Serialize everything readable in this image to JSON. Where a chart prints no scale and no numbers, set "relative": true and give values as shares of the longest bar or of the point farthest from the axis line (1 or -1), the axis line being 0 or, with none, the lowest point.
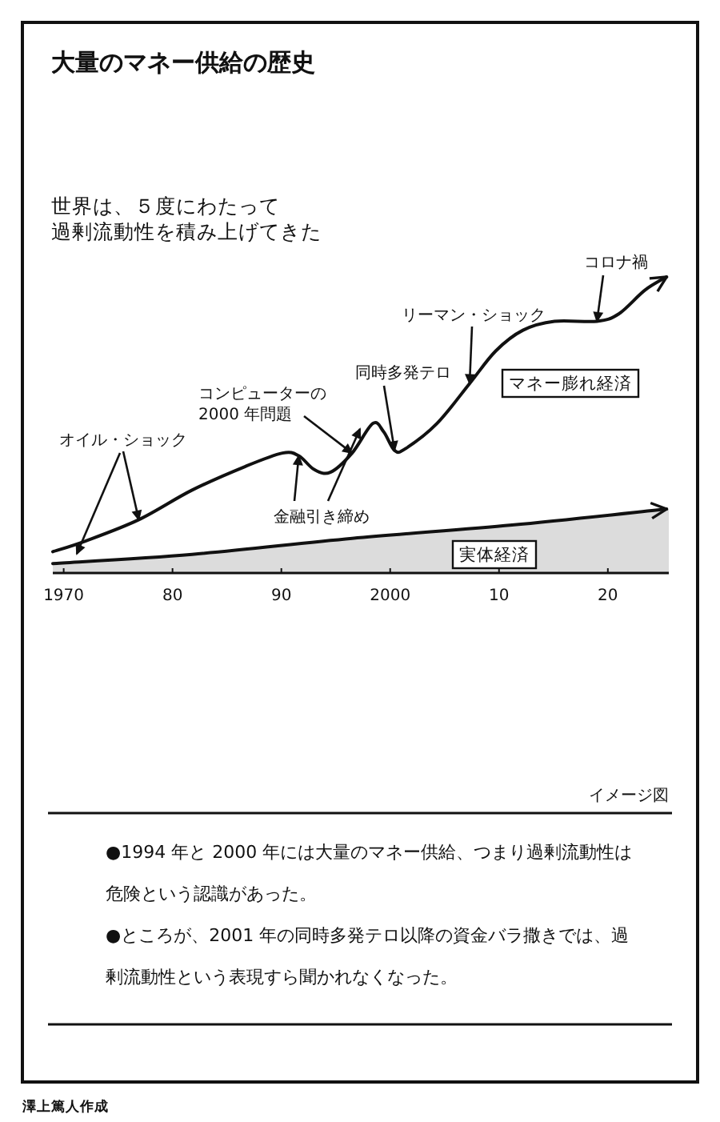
{
  "chart_data": {
    "type": "line",
    "title": "大量のマネー供給の歴史",
    "subtitle": "世界は、５度にわたって過剰流動性を積み上げてきた",
    "relative": true,
    "x": [
      1969,
      1972,
      1976.9,
      1981.8,
      1986.7,
      1990.1,
      1991.6,
      1993,
      1994.5,
      1996.5,
      1998.4,
      1999.4,
      2000.4,
      2001.4,
      2004.3,
      2007.3,
      2009.7,
      2012.2,
      2015.1,
      2019,
      2021,
      2023.4,
      2025.4
    ],
    "xlim": [
      1969,
      2025.6
    ],
    "xticks": [
      1970,
      {
        "value": 1980,
        "label": "80"
      },
      {
        "value": 1990,
        "label": "90"
      },
      2000,
      {
        "value": 2010,
        "label": "10"
      },
      {
        "value": 2020,
        "label": "20"
      }
    ],
    "series": [
      {
        "name": "マネー膨れ経済",
        "color": "#111111",
        "values": [
          0.072,
          0.108,
          0.18,
          0.28,
          0.36,
          0.405,
          0.396,
          0.35,
          0.34,
          0.405,
          0.505,
          0.477,
          0.414,
          0.42,
          0.505,
          0.64,
          0.75,
          0.82,
          0.85,
          0.85,
          0.875,
          0.955,
          1.0
        ]
      },
      {
        "name": "実体経済",
        "type": "area",
        "color": "#111111",
        "x": [
          1969,
          1981.8,
          1996.5,
          2011.2,
          2025.4
        ],
        "values": [
          0.032,
          0.063,
          0.117,
          0.162,
          0.216
        ]
      }
    ],
    "annotations": [
      {
        "text": "オイル・ショック",
        "x": 1976.9,
        "y": 0.18
      },
      {
        "text": "コンピューターの2000 年問題",
        "x": 1996.5,
        "y": 0.405
      },
      {
        "text": "同時多発テロ",
        "x": 2000.4,
        "y": 0.414
      },
      {
        "text": "金融引き締め",
        "x": 1991.6,
        "y": 0.396
      },
      {
        "text": "リーマン・ショック",
        "x": 2007.3,
        "y": 0.64
      },
      {
        "text": "コロナ禍",
        "x": 2019,
        "y": 0.85
      },
      "イメージ図",
      "●1994 年と 2000 年には大量のマネー供給、つまり過剰流動性は危険という認識があった。",
      "●ところが、2001 年の同時多発テロ以降の資金バラ撒きでは、過剰流動性という表現すら聞かれなくなった。",
      "澤上篤人作成"
    ]
  }
}
